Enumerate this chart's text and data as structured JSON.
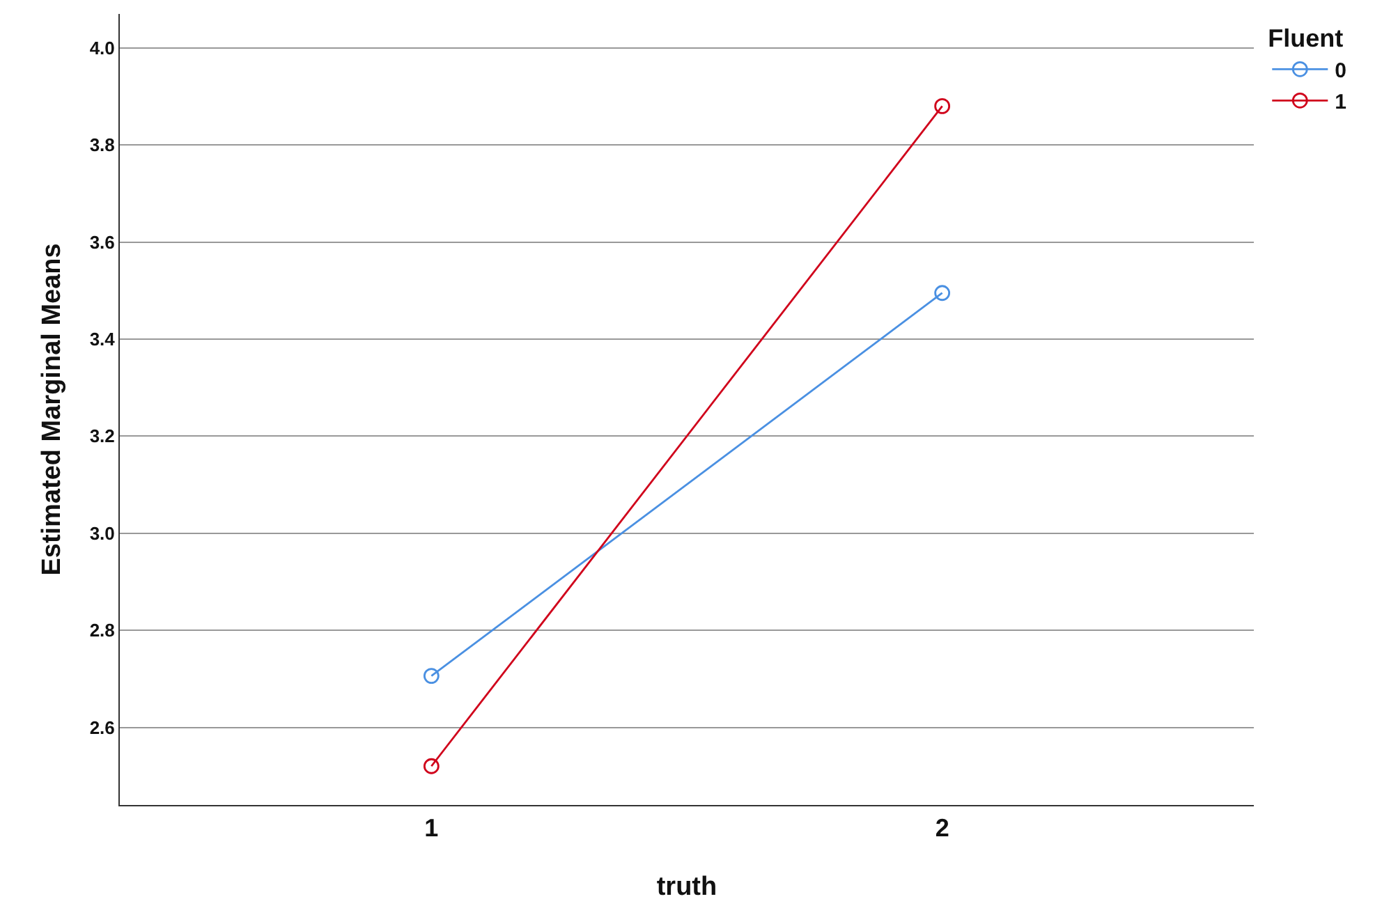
{
  "chart_data": {
    "type": "line",
    "xlabel": "truth",
    "ylabel": "Estimated Marginal Means",
    "legend_title": "Fluent",
    "categories": [
      "1",
      "2"
    ],
    "series": [
      {
        "name": "0",
        "color": "#4a90e2",
        "values": [
          2.706,
          3.495
        ]
      },
      {
        "name": "1",
        "color": "#d0021b",
        "values": [
          2.52,
          3.88
        ]
      }
    ],
    "ylim": [
      2.44,
      4.07
    ],
    "yticks": [
      2.6,
      2.8,
      {
        "value": 3,
        "label": "3.0"
      },
      3.2,
      3.4,
      3.6,
      3.8,
      {
        "value": 4,
        "label": "4.0"
      }
    ],
    "grid": "y",
    "legend": "top right",
    "marker": "circle",
    "line_style": "solid"
  }
}
